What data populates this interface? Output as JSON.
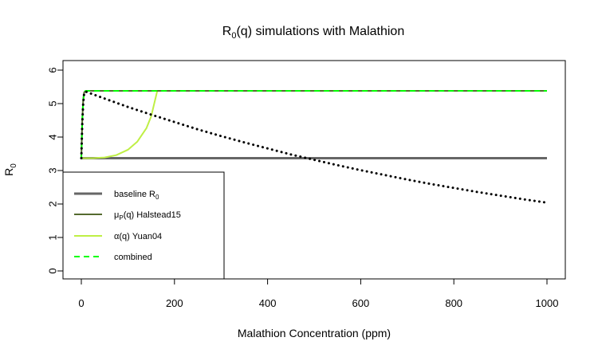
{
  "chart_data": {
    "type": "line",
    "title": "R",
    "title_sub": "0",
    "title_rest": "(q) simulations with Malathion",
    "xlabel": "Malathion Concentration (ppm)",
    "ylabel": "R",
    "ylabel_sub": "0",
    "xlim": [
      0,
      1000
    ],
    "ylim": [
      0,
      6
    ],
    "xticks": [
      0,
      200,
      400,
      600,
      800,
      1000
    ],
    "yticks": [
      0,
      1,
      2,
      3,
      4,
      5,
      6
    ],
    "grid": false,
    "legend_position": "bottom-left",
    "series": [
      {
        "name": "baseline R",
        "name_sub": "0",
        "color": "#666666",
        "style": "solid",
        "points": [
          [
            0,
            3.37
          ],
          [
            1000,
            3.37
          ]
        ]
      },
      {
        "name": "(q) Halstead15",
        "name_prefix": "μ",
        "name_prefix_sub": "P",
        "color": "#556b2f",
        "style": "solid",
        "points": [
          [
            0,
            3.37
          ],
          [
            2,
            4.5
          ],
          [
            4,
            5.1
          ],
          [
            6,
            5.33
          ],
          [
            8,
            5.37
          ],
          [
            10,
            5.38
          ],
          [
            1000,
            5.38
          ]
        ]
      },
      {
        "name": "α(q) Yuan04",
        "color": "#bfef45",
        "style": "solid",
        "points": [
          [
            0,
            3.37
          ],
          [
            25,
            3.37
          ],
          [
            50,
            3.39
          ],
          [
            75,
            3.46
          ],
          [
            100,
            3.62
          ],
          [
            120,
            3.86
          ],
          [
            140,
            4.27
          ],
          [
            150,
            4.62
          ],
          [
            160,
            5.2
          ],
          [
            163,
            5.38
          ],
          [
            1000,
            5.38
          ]
        ]
      },
      {
        "name": "combined",
        "color": "#00ff00",
        "style": "dashed",
        "points": [
          [
            0,
            3.37
          ],
          [
            2,
            4.5
          ],
          [
            4,
            5.1
          ],
          [
            6,
            5.33
          ],
          [
            8,
            5.37
          ],
          [
            10,
            5.38
          ],
          [
            1000,
            5.38
          ]
        ]
      },
      {
        "name": "",
        "color": "#000000",
        "style": "dotted",
        "points": [
          [
            0,
            3.37
          ],
          [
            2,
            4.4
          ],
          [
            4,
            5.0
          ],
          [
            6,
            5.3
          ],
          [
            9,
            5.36
          ],
          [
            50,
            5.15
          ],
          [
            100,
            4.9
          ],
          [
            150,
            4.67
          ],
          [
            200,
            4.45
          ],
          [
            250,
            4.23
          ],
          [
            300,
            4.03
          ],
          [
            350,
            3.84
          ],
          [
            400,
            3.66
          ],
          [
            450,
            3.48
          ],
          [
            500,
            3.32
          ],
          [
            550,
            3.16
          ],
          [
            600,
            3.01
          ],
          [
            650,
            2.87
          ],
          [
            700,
            2.73
          ],
          [
            750,
            2.6
          ],
          [
            800,
            2.48
          ],
          [
            850,
            2.36
          ],
          [
            900,
            2.25
          ],
          [
            950,
            2.14
          ],
          [
            1000,
            2.04
          ]
        ]
      }
    ]
  }
}
